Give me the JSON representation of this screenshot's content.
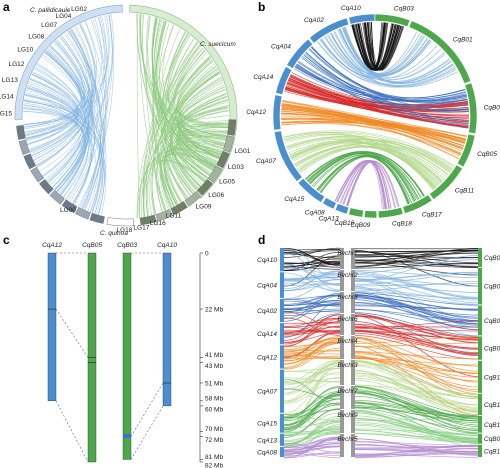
{
  "panels": {
    "a": {
      "letter": "a",
      "species": {
        "left": "C. pallidicaule",
        "right": "C. suecicum",
        "bottom": "C. quinoa"
      },
      "lg_left": [
        "LG02",
        "LG04",
        "LG07",
        "LG08",
        "LG10",
        "LG12",
        "LG13",
        "LG14",
        "LG15"
      ],
      "lg_right": [
        "LG01",
        "LG03",
        "LG05",
        "LG06",
        "LG09",
        "LG11",
        "LG16",
        "LG17",
        "LG18"
      ],
      "lg_bottom_left": "LG00",
      "colors": {
        "left": "#7fb2e0",
        "right": "#8fc97f",
        "ring_left": "#cfe0f3",
        "ring_right": "#d8ecd0"
      }
    },
    "b": {
      "letter": "b",
      "A_chroms": [
        "CqA10",
        "CqA02",
        "CqA04",
        "CqA14",
        "CqA12",
        "CqA07",
        "CqA15",
        "CqA08",
        "CqA13"
      ],
      "B_chroms": [
        "CqB03",
        "CqB01",
        "CqB06",
        "CqB05",
        "CqB11",
        "CqB17",
        "CqB18",
        "CqB09",
        "CqB16"
      ],
      "colors": {
        "A": "#4a8fcf",
        "B": "#4ca84a"
      }
    },
    "c": {
      "letter": "c",
      "chromosomes": [
        {
          "name": "CqA12",
          "genome": "A",
          "length_mb": 58
        },
        {
          "name": "CqB05",
          "genome": "B",
          "length_mb": 82
        },
        {
          "name": "CqB03",
          "genome": "B",
          "length_mb": 81
        },
        {
          "name": "CqA10",
          "genome": "A",
          "length_mb": 60
        }
      ],
      "scale_ticks": [
        "0",
        "22 Mb",
        "41 Mb",
        "43 Mb",
        "51 Mb",
        "58 Mb",
        "60 Mb",
        "70 Mb",
        "72 Mb",
        "81 Mb",
        "82 Mb"
      ],
      "colors": {
        "A": "#4a8fcf",
        "B": "#4ca84a",
        "marker": "#3a6fd0"
      }
    },
    "d": {
      "letter": "d",
      "left": [
        "CqA10",
        "CqA04",
        "CqA02",
        "CqA14",
        "CqA12",
        "CqA07",
        "CqA15",
        "CqA13",
        "CqA08"
      ],
      "middle": [
        "Bvchr1",
        "Bvchr2",
        "Bvchr8",
        "Bvchr6",
        "Bvchr4",
        "Bvchr3",
        "Bvchr7",
        "Bvchr9",
        "Bvchr5"
      ],
      "right": [
        "CqB03",
        "CqB01",
        "CqB06",
        "CqB05",
        "CqB11",
        "CqB17",
        "CqB18",
        "CqB09",
        "CqB16"
      ],
      "colors": {
        "A": "#4a8fcf",
        "B": "#4ca84a",
        "bv": "#888888"
      }
    }
  }
}
